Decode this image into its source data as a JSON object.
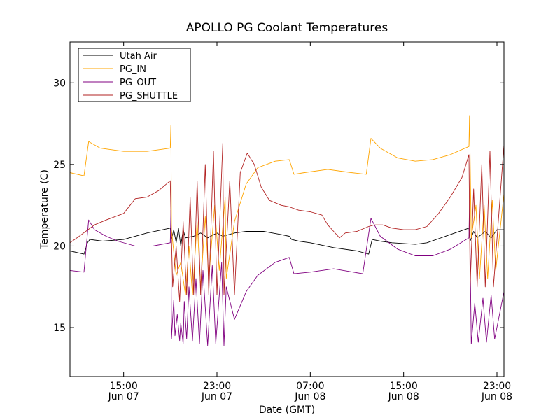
{
  "chart_data": {
    "type": "line",
    "title": "APOLLO PG Coolant Temperatures",
    "xlabel": "Date (GMT)",
    "ylabel": "Temperature (C)",
    "x_unit": "hours since Jun 07 00:00 GMT",
    "xlim": [
      10.4,
      47.6
    ],
    "ylim": [
      12,
      32.5
    ],
    "yticks": [
      15,
      20,
      25,
      30
    ],
    "xticks": [
      {
        "x": 15,
        "time": "15:00",
        "date": "Jun 07"
      },
      {
        "x": 23,
        "time": "23:00",
        "date": "Jun 07"
      },
      {
        "x": 31,
        "time": "07:00",
        "date": "Jun 08"
      },
      {
        "x": 39,
        "time": "15:00",
        "date": "Jun 08"
      },
      {
        "x": 47,
        "time": "23:00",
        "date": "Jun 08"
      }
    ],
    "grid": false,
    "legend_position": "top-left",
    "series": [
      {
        "name": "Utah Air",
        "color": "#000000",
        "points": [
          [
            10.4,
            19.7
          ],
          [
            11.6,
            19.5
          ],
          [
            11.9,
            20.2
          ],
          [
            12.1,
            20.4
          ],
          [
            13.2,
            20.3
          ],
          [
            15.0,
            20.4
          ],
          [
            17.0,
            20.8
          ],
          [
            19.0,
            21.1
          ],
          [
            19.1,
            20.4
          ],
          [
            19.3,
            21.0
          ],
          [
            19.5,
            20.2
          ],
          [
            19.7,
            21.1
          ],
          [
            19.9,
            20.0
          ],
          [
            20.1,
            21.0
          ],
          [
            20.3,
            20.5
          ],
          [
            21.0,
            20.6
          ],
          [
            21.6,
            20.8
          ],
          [
            22.2,
            20.5
          ],
          [
            23.0,
            20.8
          ],
          [
            23.5,
            20.6
          ],
          [
            24.5,
            20.8
          ],
          [
            25.5,
            20.9
          ],
          [
            27.0,
            20.9
          ],
          [
            28.5,
            20.7
          ],
          [
            29.2,
            20.6
          ],
          [
            29.4,
            20.4
          ],
          [
            30.0,
            20.3
          ],
          [
            31.0,
            20.2
          ],
          [
            33.0,
            19.9
          ],
          [
            35.0,
            19.7
          ],
          [
            36.0,
            19.5
          ],
          [
            36.3,
            20.4
          ],
          [
            37.0,
            20.3
          ],
          [
            38.0,
            20.2
          ],
          [
            40.0,
            20.1
          ],
          [
            41.0,
            20.2
          ],
          [
            43.0,
            20.7
          ],
          [
            44.6,
            21.1
          ],
          [
            44.7,
            20.3
          ],
          [
            45.0,
            20.9
          ],
          [
            45.3,
            20.5
          ],
          [
            46.0,
            20.9
          ],
          [
            46.5,
            20.5
          ],
          [
            47.0,
            21.0
          ],
          [
            47.6,
            21.0
          ]
        ]
      },
      {
        "name": "PG_IN",
        "color": "#ffa500",
        "points": [
          [
            10.4,
            24.5
          ],
          [
            11.6,
            24.3
          ],
          [
            12.0,
            26.4
          ],
          [
            13.0,
            26.0
          ],
          [
            15.0,
            25.8
          ],
          [
            17.0,
            25.8
          ],
          [
            19.0,
            26.0
          ],
          [
            19.05,
            27.4
          ],
          [
            19.1,
            21.0
          ],
          [
            19.5,
            18.2
          ],
          [
            19.9,
            19.0
          ],
          [
            20.3,
            17.0
          ],
          [
            20.6,
            20.0
          ],
          [
            20.9,
            17.0
          ],
          [
            21.3,
            21.5
          ],
          [
            21.6,
            17.5
          ],
          [
            22.0,
            21.8
          ],
          [
            22.3,
            18.0
          ],
          [
            22.8,
            22.5
          ],
          [
            23.2,
            18.5
          ],
          [
            23.7,
            23.0
          ],
          [
            23.8,
            18.0
          ],
          [
            24.5,
            21.5
          ],
          [
            25.5,
            23.8
          ],
          [
            26.5,
            24.8
          ],
          [
            28.0,
            25.2
          ],
          [
            29.2,
            25.3
          ],
          [
            29.6,
            24.4
          ],
          [
            30.5,
            24.5
          ],
          [
            32.5,
            24.7
          ],
          [
            34.5,
            24.5
          ],
          [
            35.8,
            24.4
          ],
          [
            36.2,
            26.6
          ],
          [
            37.0,
            26.0
          ],
          [
            38.5,
            25.4
          ],
          [
            40.0,
            25.2
          ],
          [
            41.5,
            25.3
          ],
          [
            43.0,
            25.6
          ],
          [
            44.6,
            26.1
          ],
          [
            44.65,
            28.0
          ],
          [
            44.8,
            20.5
          ],
          [
            45.2,
            22.5
          ],
          [
            45.5,
            18.0
          ],
          [
            45.9,
            22.5
          ],
          [
            46.2,
            18.0
          ],
          [
            46.6,
            22.8
          ],
          [
            46.9,
            18.5
          ],
          [
            47.6,
            23.2
          ]
        ]
      },
      {
        "name": "PG_OUT",
        "color": "#800080",
        "points": [
          [
            10.4,
            18.5
          ],
          [
            11.6,
            18.4
          ],
          [
            12.0,
            21.6
          ],
          [
            12.5,
            21.0
          ],
          [
            13.5,
            20.6
          ],
          [
            14.5,
            20.3
          ],
          [
            16.0,
            20.0
          ],
          [
            17.5,
            20.0
          ],
          [
            19.0,
            20.2
          ],
          [
            19.05,
            22.2
          ],
          [
            19.1,
            14.3
          ],
          [
            19.3,
            16.7
          ],
          [
            19.4,
            14.5
          ],
          [
            19.6,
            15.8
          ],
          [
            19.8,
            14.2
          ],
          [
            19.9,
            15.3
          ],
          [
            20.1,
            14.0
          ],
          [
            20.2,
            16.6
          ],
          [
            20.4,
            14.3
          ],
          [
            20.6,
            17.5
          ],
          [
            20.9,
            14.2
          ],
          [
            21.2,
            18.0
          ],
          [
            21.5,
            14.0
          ],
          [
            21.8,
            18.5
          ],
          [
            22.2,
            13.9
          ],
          [
            22.6,
            18.8
          ],
          [
            22.9,
            14.0
          ],
          [
            23.4,
            19.0
          ],
          [
            23.6,
            13.9
          ],
          [
            23.8,
            17.5
          ],
          [
            24.5,
            15.5
          ],
          [
            25.5,
            17.2
          ],
          [
            26.5,
            18.2
          ],
          [
            28.0,
            19.0
          ],
          [
            29.2,
            19.3
          ],
          [
            29.6,
            18.3
          ],
          [
            31.0,
            18.4
          ],
          [
            33.0,
            18.6
          ],
          [
            35.5,
            18.3
          ],
          [
            36.2,
            21.7
          ],
          [
            37.0,
            20.6
          ],
          [
            38.5,
            19.8
          ],
          [
            40.0,
            19.4
          ],
          [
            41.5,
            19.4
          ],
          [
            43.0,
            19.8
          ],
          [
            44.6,
            20.5
          ],
          [
            44.65,
            22.8
          ],
          [
            44.8,
            14.0
          ],
          [
            45.1,
            16.5
          ],
          [
            45.4,
            14.1
          ],
          [
            45.8,
            16.8
          ],
          [
            46.1,
            14.1
          ],
          [
            46.5,
            17.0
          ],
          [
            46.8,
            14.3
          ],
          [
            47.6,
            17.2
          ]
        ]
      },
      {
        "name": "PG_SHUTTLE",
        "color": "#b22222",
        "points": [
          [
            10.4,
            20.2
          ],
          [
            11.0,
            20.5
          ],
          [
            12.5,
            21.3
          ],
          [
            13.5,
            21.6
          ],
          [
            15.0,
            22.0
          ],
          [
            16.0,
            22.9
          ],
          [
            17.0,
            23.0
          ],
          [
            18.0,
            23.4
          ],
          [
            19.0,
            24.0
          ],
          [
            19.05,
            22.0
          ],
          [
            19.2,
            17.5
          ],
          [
            19.5,
            20.0
          ],
          [
            19.8,
            16.6
          ],
          [
            20.1,
            21.5
          ],
          [
            20.4,
            17.0
          ],
          [
            20.7,
            23.0
          ],
          [
            21.0,
            17.0
          ],
          [
            21.3,
            24.0
          ],
          [
            21.6,
            17.0
          ],
          [
            22.0,
            25.0
          ],
          [
            22.3,
            17.0
          ],
          [
            22.7,
            25.8
          ],
          [
            23.0,
            17.0
          ],
          [
            23.5,
            26.3
          ],
          [
            23.6,
            17.0
          ],
          [
            24.1,
            24.0
          ],
          [
            24.5,
            17.0
          ],
          [
            25.0,
            24.5
          ],
          [
            25.6,
            25.7
          ],
          [
            26.2,
            25.0
          ],
          [
            26.8,
            23.6
          ],
          [
            27.5,
            22.8
          ],
          [
            28.5,
            22.5
          ],
          [
            29.2,
            22.4
          ],
          [
            30.0,
            22.2
          ],
          [
            31.0,
            22.1
          ],
          [
            32.0,
            21.9
          ],
          [
            32.5,
            21.3
          ],
          [
            33.0,
            20.9
          ],
          [
            33.5,
            20.5
          ],
          [
            34.0,
            20.8
          ],
          [
            35.0,
            20.9
          ],
          [
            36.0,
            21.2
          ],
          [
            36.5,
            21.3
          ],
          [
            37.2,
            21.3
          ],
          [
            38.0,
            21.1
          ],
          [
            39.0,
            21.0
          ],
          [
            40.0,
            21.0
          ],
          [
            41.0,
            21.2
          ],
          [
            42.0,
            22.0
          ],
          [
            43.0,
            23.0
          ],
          [
            44.0,
            24.2
          ],
          [
            44.6,
            25.6
          ],
          [
            44.7,
            17.5
          ],
          [
            45.0,
            23.5
          ],
          [
            45.3,
            17.5
          ],
          [
            45.7,
            25.0
          ],
          [
            46.0,
            17.5
          ],
          [
            46.4,
            25.8
          ],
          [
            46.7,
            17.5
          ],
          [
            47.6,
            26.2
          ]
        ]
      }
    ]
  }
}
